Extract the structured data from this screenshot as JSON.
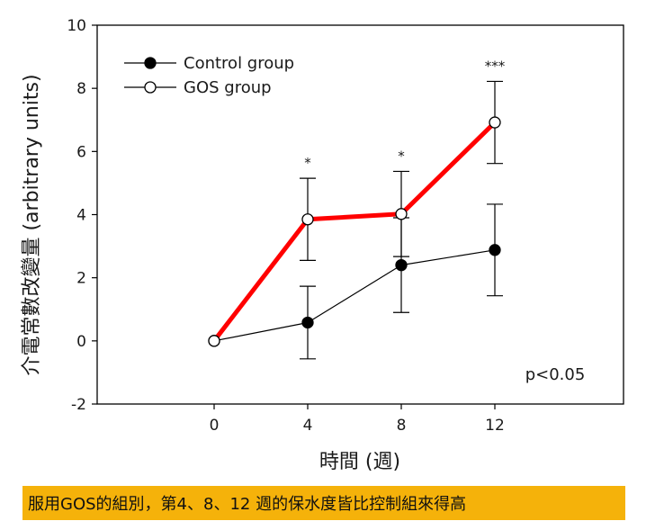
{
  "chart_data": {
    "type": "line",
    "x": [
      0,
      4,
      8,
      12
    ],
    "series": [
      {
        "name": "Control group",
        "values": [
          0,
          0.58,
          2.4,
          2.88
        ],
        "error": [
          0,
          1.15,
          1.5,
          1.45
        ],
        "color": "#000000",
        "marker": "filled-circle"
      },
      {
        "name": "GOS group",
        "values": [
          0,
          3.85,
          4.02,
          6.92
        ],
        "error": [
          0,
          1.3,
          1.35,
          1.3
        ],
        "color": "#ff0000",
        "marker": "open-circle"
      }
    ],
    "xlabel": "時間 (週)",
    "ylabel": "介電常數改變量 (arbitrary units)",
    "xlim": [
      -5,
      17.5
    ],
    "ylim": [
      -2,
      10
    ],
    "xticks": [
      "0",
      "4",
      "8",
      "12"
    ],
    "yticks": [
      "-2",
      "0",
      "2",
      "4",
      "6",
      "8",
      "10"
    ],
    "legend_position": "top-left",
    "significance": [
      {
        "x": 4,
        "label": "*"
      },
      {
        "x": 8,
        "label": "*"
      },
      {
        "x": 12,
        "label": "***"
      }
    ],
    "annotation": "p<0.05",
    "grid": false
  },
  "caption": "服用GOS的組別，第4、8、12 週的保水度皆比控制組來得高",
  "colors": {
    "caption_background": "#f5b20a",
    "gos_line": "#ff0000",
    "control_line": "#000000"
  }
}
